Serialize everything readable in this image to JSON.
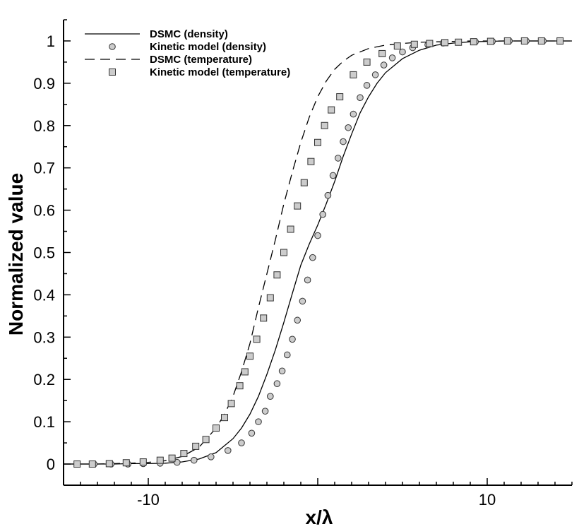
{
  "chart_data": {
    "type": "line",
    "title": "",
    "xlabel": "x/λ",
    "ylabel": "Normalized value",
    "xlim": [
      -15,
      15
    ],
    "ylim": [
      -0.05,
      1.05
    ],
    "x_ticks": [
      -10,
      10
    ],
    "x_tick_labels": [
      "-10",
      "10"
    ],
    "y_ticks": [
      0,
      0.1,
      0.2,
      0.3,
      0.4,
      0.5,
      0.6,
      0.7,
      0.8,
      0.9,
      1
    ],
    "y_tick_labels": [
      "0",
      "0.1",
      "0.2",
      "0.3",
      "0.4",
      "0.5",
      "0.6",
      "0.7",
      "0.8",
      "0.9",
      "1"
    ],
    "grid": false,
    "legend_position": "top-left",
    "series": [
      {
        "name": "DSMC (density)",
        "style": "solid-line",
        "color": "#000000",
        "x": [
          -15,
          -14,
          -13,
          -12,
          -11,
          -10,
          -9,
          -8,
          -7,
          -6,
          -5,
          -4.5,
          -4,
          -3.5,
          -3,
          -2.5,
          -2,
          -1.5,
          -1,
          -0.5,
          0,
          0.5,
          1,
          1.5,
          2,
          2.5,
          3,
          3.5,
          4,
          5,
          6,
          7,
          8,
          9,
          10,
          11,
          12,
          13,
          14,
          15
        ],
        "y": [
          0,
          0,
          0,
          0,
          0.001,
          0.001,
          0.002,
          0.005,
          0.012,
          0.027,
          0.06,
          0.085,
          0.118,
          0.16,
          0.212,
          0.27,
          0.335,
          0.403,
          0.47,
          0.52,
          0.565,
          0.615,
          0.668,
          0.727,
          0.78,
          0.83,
          0.868,
          0.9,
          0.925,
          0.958,
          0.978,
          0.99,
          0.995,
          0.998,
          0.999,
          1,
          1,
          1,
          1,
          1
        ]
      },
      {
        "name": "Kinetic model (density)",
        "style": "circle-marker",
        "color": "#cccccc",
        "x": [
          -14.2,
          -13.2,
          -12.2,
          -11.2,
          -10.3,
          -9.3,
          -8.3,
          -7.3,
          -6.3,
          -5.3,
          -4.5,
          -3.9,
          -3.5,
          -3.1,
          -2.8,
          -2.4,
          -2.1,
          -1.8,
          -1.5,
          -1.2,
          -0.9,
          -0.6,
          -0.3,
          0,
          0.3,
          0.6,
          0.9,
          1.2,
          1.5,
          1.8,
          2.1,
          2.5,
          2.9,
          3.4,
          3.9,
          4.4,
          5,
          5.6,
          6.5,
          7.4,
          8.3,
          9.3,
          10.3,
          11.3,
          12.3,
          13.3,
          14.3
        ],
        "y": [
          0,
          0,
          0,
          0,
          0.001,
          0.002,
          0.004,
          0.009,
          0.017,
          0.032,
          0.05,
          0.073,
          0.1,
          0.125,
          0.16,
          0.19,
          0.22,
          0.258,
          0.295,
          0.34,
          0.385,
          0.435,
          0.488,
          0.54,
          0.59,
          0.635,
          0.682,
          0.723,
          0.762,
          0.795,
          0.827,
          0.866,
          0.895,
          0.92,
          0.943,
          0.96,
          0.974,
          0.984,
          0.991,
          0.995,
          0.997,
          0.998,
          0.999,
          1,
          1,
          1,
          1
        ]
      },
      {
        "name": "DSMC (temperature)",
        "style": "dashed-line",
        "color": "#000000",
        "x": [
          -15,
          -14,
          -13,
          -12,
          -11,
          -10,
          -9,
          -8,
          -7,
          -6,
          -5.5,
          -5,
          -4.5,
          -4,
          -3.5,
          -3,
          -2.5,
          -2,
          -1.5,
          -1,
          -0.5,
          0,
          0.5,
          1,
          1.5,
          2,
          3,
          4,
          5,
          6,
          7,
          8,
          9,
          10,
          11,
          12,
          13,
          14,
          15
        ],
        "y": [
          0,
          0,
          0,
          0.001,
          0.002,
          0.004,
          0.008,
          0.018,
          0.04,
          0.085,
          0.118,
          0.16,
          0.218,
          0.285,
          0.37,
          0.45,
          0.53,
          0.615,
          0.69,
          0.76,
          0.82,
          0.868,
          0.905,
          0.933,
          0.952,
          0.966,
          0.982,
          0.99,
          0.994,
          0.997,
          0.998,
          0.999,
          1,
          1,
          1,
          1,
          1,
          1,
          1
        ]
      },
      {
        "name": "Kinetic model (temperature)",
        "style": "square-marker",
        "color": "#cccccc",
        "x": [
          -14.2,
          -13.3,
          -12.3,
          -11.3,
          -10.3,
          -9.3,
          -8.6,
          -7.9,
          -7.2,
          -6.6,
          -6,
          -5.5,
          -5.1,
          -4.6,
          -4.3,
          -4,
          -3.6,
          -3.2,
          -2.8,
          -2.4,
          -2,
          -1.6,
          -1.2,
          -0.8,
          -0.4,
          0,
          0.4,
          0.8,
          1.3,
          2.1,
          2.9,
          3.8,
          4.7,
          5.7,
          6.6,
          7.5,
          8.3,
          9.2,
          10.2,
          11.2,
          12.2,
          13.2,
          14.3
        ],
        "y": [
          0,
          0,
          0.001,
          0.003,
          0.005,
          0.009,
          0.014,
          0.025,
          0.042,
          0.058,
          0.085,
          0.11,
          0.143,
          0.185,
          0.218,
          0.255,
          0.295,
          0.345,
          0.393,
          0.447,
          0.5,
          0.555,
          0.61,
          0.665,
          0.715,
          0.76,
          0.8,
          0.837,
          0.868,
          0.92,
          0.95,
          0.97,
          0.988,
          0.992,
          0.994,
          0.996,
          0.997,
          0.998,
          0.999,
          1,
          1,
          1,
          1
        ]
      }
    ]
  }
}
